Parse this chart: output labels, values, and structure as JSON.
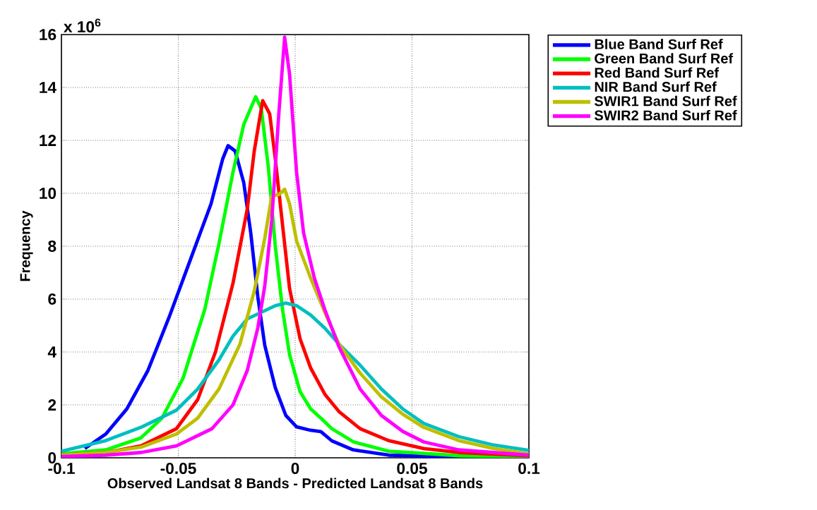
{
  "chart_data": {
    "type": "line",
    "xlabel": "Observed Landsat 8 Bands - Predicted Landsat 8 Bands",
    "ylabel": "Frequency",
    "annotations": [
      "x 10$^{6}$"
    ],
    "xlim": [
      -0.1,
      0.1
    ],
    "ylim": [
      0,
      16
    ],
    "xticks": [
      -0.1,
      -0.05,
      0,
      0.05,
      0.1
    ],
    "yticks": [
      0,
      2,
      4,
      6,
      8,
      10,
      12,
      14,
      16
    ],
    "grid": true,
    "legend": "top right",
    "line_style": "solid",
    "marker": "none",
    "series": [
      {
        "name": "Blue Band Surf Ref",
        "color": "#0000ff",
        "x": [
          -0.09,
          -0.081,
          -0.072,
          -0.063,
          -0.054,
          -0.045,
          -0.036,
          -0.031,
          -0.0287,
          -0.0257,
          -0.022,
          -0.019,
          -0.016,
          -0.013,
          -0.0085,
          -0.004,
          0.0006,
          0.0066,
          0.011,
          0.0157,
          0.0248,
          0.04,
          0.07
        ],
        "values": [
          0.35,
          0.9,
          1.85,
          3.3,
          5.3,
          7.45,
          9.6,
          11.3,
          11.8,
          11.6,
          10.4,
          8.5,
          6.1,
          4.25,
          2.65,
          1.6,
          1.17,
          1.04,
          0.99,
          0.64,
          0.3,
          0.1,
          0.03
        ]
      },
      {
        "name": "Green Band Surf Ref",
        "color": "#00ff00",
        "x": [
          -0.1,
          -0.081,
          -0.066,
          -0.057,
          -0.048,
          -0.0387,
          -0.0326,
          -0.0266,
          -0.022,
          -0.0169,
          -0.0145,
          -0.0115,
          -0.0085,
          -0.0054,
          -0.0024,
          0.0021,
          0.0066,
          0.011,
          0.0157,
          0.025,
          0.04,
          0.07,
          0.1
        ],
        "values": [
          0.15,
          0.3,
          0.75,
          1.5,
          3.0,
          5.6,
          8.1,
          10.8,
          12.6,
          13.65,
          13.2,
          11.0,
          8.0,
          5.6,
          3.9,
          2.5,
          1.85,
          1.5,
          1.1,
          0.6,
          0.25,
          0.08,
          0.03
        ]
      },
      {
        "name": "Red Band Surf Ref",
        "color": "#ff0000",
        "x": [
          -0.1,
          -0.081,
          -0.066,
          -0.0508,
          -0.0417,
          -0.0341,
          -0.0266,
          -0.0205,
          -0.0175,
          -0.0139,
          -0.0109,
          -0.0085,
          -0.0054,
          -0.0024,
          0.0021,
          0.0066,
          0.0127,
          0.0187,
          0.0278,
          0.04,
          0.055,
          0.07,
          0.1
        ],
        "values": [
          0.1,
          0.2,
          0.45,
          1.1,
          2.2,
          4.0,
          6.6,
          9.4,
          11.6,
          13.5,
          13.0,
          11.3,
          8.8,
          6.4,
          4.5,
          3.4,
          2.4,
          1.75,
          1.1,
          0.65,
          0.35,
          0.2,
          0.08
        ]
      },
      {
        "name": "NIR Band Surf Ref",
        "color": "#00bfbf",
        "x": [
          -0.1,
          -0.081,
          -0.066,
          -0.0508,
          -0.0417,
          -0.0326,
          -0.0266,
          -0.0205,
          -0.0145,
          -0.0085,
          -0.004,
          0.0006,
          0.0066,
          0.0127,
          0.0187,
          0.0278,
          0.0369,
          0.046,
          0.055,
          0.07,
          0.085,
          0.1
        ],
        "values": [
          0.25,
          0.65,
          1.15,
          1.8,
          2.6,
          3.7,
          4.6,
          5.25,
          5.5,
          5.75,
          5.85,
          5.75,
          5.4,
          4.9,
          4.3,
          3.5,
          2.6,
          1.85,
          1.3,
          0.8,
          0.48,
          0.28
        ]
      },
      {
        "name": "SWIR1 Band Surf Ref",
        "color": "#bfbf00",
        "x": [
          -0.1,
          -0.081,
          -0.066,
          -0.0508,
          -0.0417,
          -0.0326,
          -0.0236,
          -0.0175,
          -0.013,
          -0.01,
          -0.007,
          -0.0045,
          -0.0024,
          0.0006,
          0.0066,
          0.0127,
          0.0187,
          0.0278,
          0.0369,
          0.046,
          0.055,
          0.07,
          0.085,
          0.1
        ],
        "values": [
          0.1,
          0.2,
          0.4,
          0.9,
          1.5,
          2.6,
          4.3,
          6.3,
          8.3,
          9.9,
          9.95,
          10.15,
          9.6,
          8.2,
          6.8,
          5.5,
          4.3,
          3.2,
          2.3,
          1.65,
          1.15,
          0.65,
          0.35,
          0.15
        ]
      },
      {
        "name": "SWIR2 Band Surf Ref",
        "color": "#ff00ff",
        "x": [
          -0.1,
          -0.081,
          -0.066,
          -0.0508,
          -0.0356,
          -0.0266,
          -0.0205,
          -0.016,
          -0.013,
          -0.01,
          -0.007,
          -0.0045,
          -0.0024,
          0.0006,
          0.0036,
          0.0082,
          0.0127,
          0.0187,
          0.0278,
          0.0369,
          0.046,
          0.055,
          0.07,
          0.1
        ],
        "values": [
          0.05,
          0.1,
          0.2,
          0.45,
          1.1,
          2.0,
          3.3,
          4.9,
          6.5,
          9.0,
          13.0,
          15.9,
          14.5,
          10.8,
          8.5,
          6.8,
          5.6,
          4.2,
          2.6,
          1.6,
          1.0,
          0.6,
          0.3,
          0.1
        ]
      }
    ]
  }
}
